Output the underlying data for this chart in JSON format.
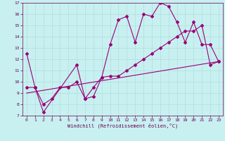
{
  "xlabel": "Windchill (Refroidissement éolien,°C)",
  "bg_color": "#c8f0f0",
  "line_color": "#990077",
  "grid_color": "#b0dede",
  "xlim": [
    -0.5,
    23.5
  ],
  "ylim": [
    7,
    17
  ],
  "xticks": [
    0,
    1,
    2,
    3,
    4,
    5,
    6,
    7,
    8,
    9,
    10,
    11,
    12,
    13,
    14,
    15,
    16,
    17,
    18,
    19,
    20,
    21,
    22,
    23
  ],
  "yticks": [
    7,
    8,
    9,
    10,
    11,
    12,
    13,
    14,
    15,
    16,
    17
  ],
  "line1_x": [
    0,
    1,
    2,
    6,
    7,
    8,
    9,
    10,
    11,
    12,
    13,
    14,
    15,
    16,
    17,
    18,
    19,
    20,
    21,
    22,
    23
  ],
  "line1_y": [
    12.5,
    9.5,
    7.3,
    11.5,
    8.5,
    8.7,
    10.4,
    13.3,
    15.5,
    15.8,
    13.5,
    16.0,
    15.8,
    17.0,
    16.7,
    15.3,
    13.5,
    15.3,
    13.3,
    13.3,
    11.8
  ],
  "line2_x": [
    0,
    1,
    2,
    3,
    4,
    5,
    6,
    7,
    8,
    9,
    10,
    11,
    12,
    13,
    14,
    15,
    16,
    17,
    18,
    19,
    20,
    21,
    22,
    23
  ],
  "line2_y": [
    9.5,
    9.5,
    8.0,
    8.5,
    9.5,
    9.5,
    10.0,
    8.5,
    9.5,
    10.4,
    10.5,
    10.5,
    11.0,
    11.5,
    12.0,
    12.5,
    13.0,
    13.5,
    14.0,
    14.5,
    14.5,
    15.0,
    11.5,
    11.8
  ],
  "line3_x": [
    0,
    23
  ],
  "line3_y": [
    9.0,
    11.8
  ]
}
